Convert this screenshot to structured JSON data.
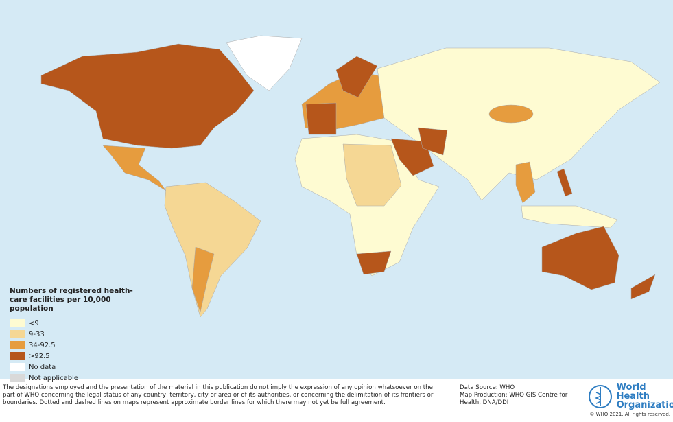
{
  "legend": {
    "title": "Numbers of registered health-care facilities per 10,000 population",
    "items": [
      {
        "label": "<9",
        "color": "#fefbd2"
      },
      {
        "label": "9-33",
        "color": "#f5d794"
      },
      {
        "label": "34-92.5",
        "color": "#e69c3e"
      },
      {
        "label": ">92.5",
        "color": "#b6561b"
      },
      {
        "label": "No data",
        "color": "#ffffff"
      },
      {
        "label": "Not applicable",
        "color": "#d9d9d9"
      }
    ]
  },
  "footer": {
    "disclaimer": "The designations employed and the presentation of the material in this publication do not imply the expression of any opinion whatsoever on the part of WHO concerning the legal status of any country, territory, city or area or of its authorities, or concerning the delimitation of its frontiers or boundaries. Dotted and dashed lines on maps represent approximate border lines for which there may not yet be full agreement.",
    "data_source": "Data Source: WHO",
    "map_production": "Map Production: WHO GIS Centre for Health, DNA/DDI",
    "copyright": "© WHO 2021. All rights reserved."
  },
  "logo": {
    "line1": "World Health",
    "line2": "Organization"
  }
}
